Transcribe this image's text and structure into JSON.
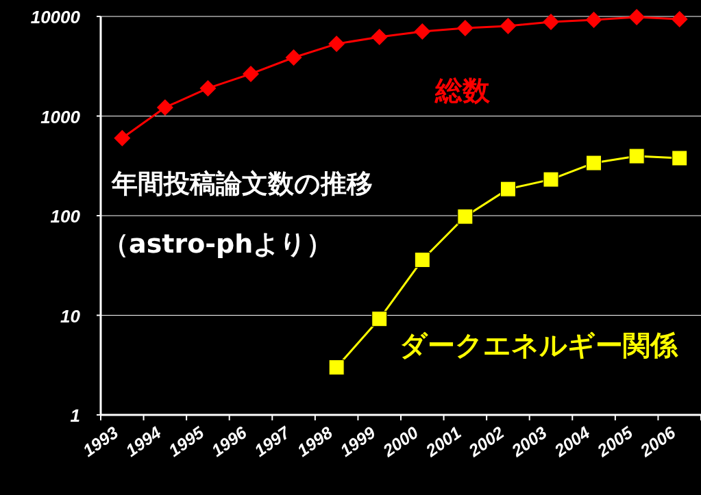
{
  "chart_data": {
    "type": "line",
    "title": "年間投稿論文数の推移",
    "subtitle": "（astro-phより）",
    "categories": [
      "1993",
      "1994",
      "1995",
      "1996",
      "1997",
      "1998",
      "1999",
      "2000",
      "2001",
      "2002",
      "2003",
      "2004",
      "2005",
      "2006"
    ],
    "series": [
      {
        "name": "総数",
        "color": "#ff0000",
        "marker": "diamond",
        "values": [
          600,
          1220,
          1900,
          2650,
          3870,
          5300,
          6220,
          7060,
          7640,
          8020,
          8810,
          9240,
          9840,
          9390
        ]
      },
      {
        "name": "ダークエネルギー関係",
        "color": "#ffff00",
        "marker": "square",
        "values": [
          null,
          null,
          null,
          null,
          null,
          3,
          9.2,
          36,
          98,
          185,
          231,
          338,
          396,
          378
        ]
      }
    ],
    "log": "y",
    "ylim": [
      1,
      10000
    ],
    "yticks": [
      1,
      10,
      100,
      1000,
      10000
    ],
    "grid": "y",
    "legend": false
  }
}
